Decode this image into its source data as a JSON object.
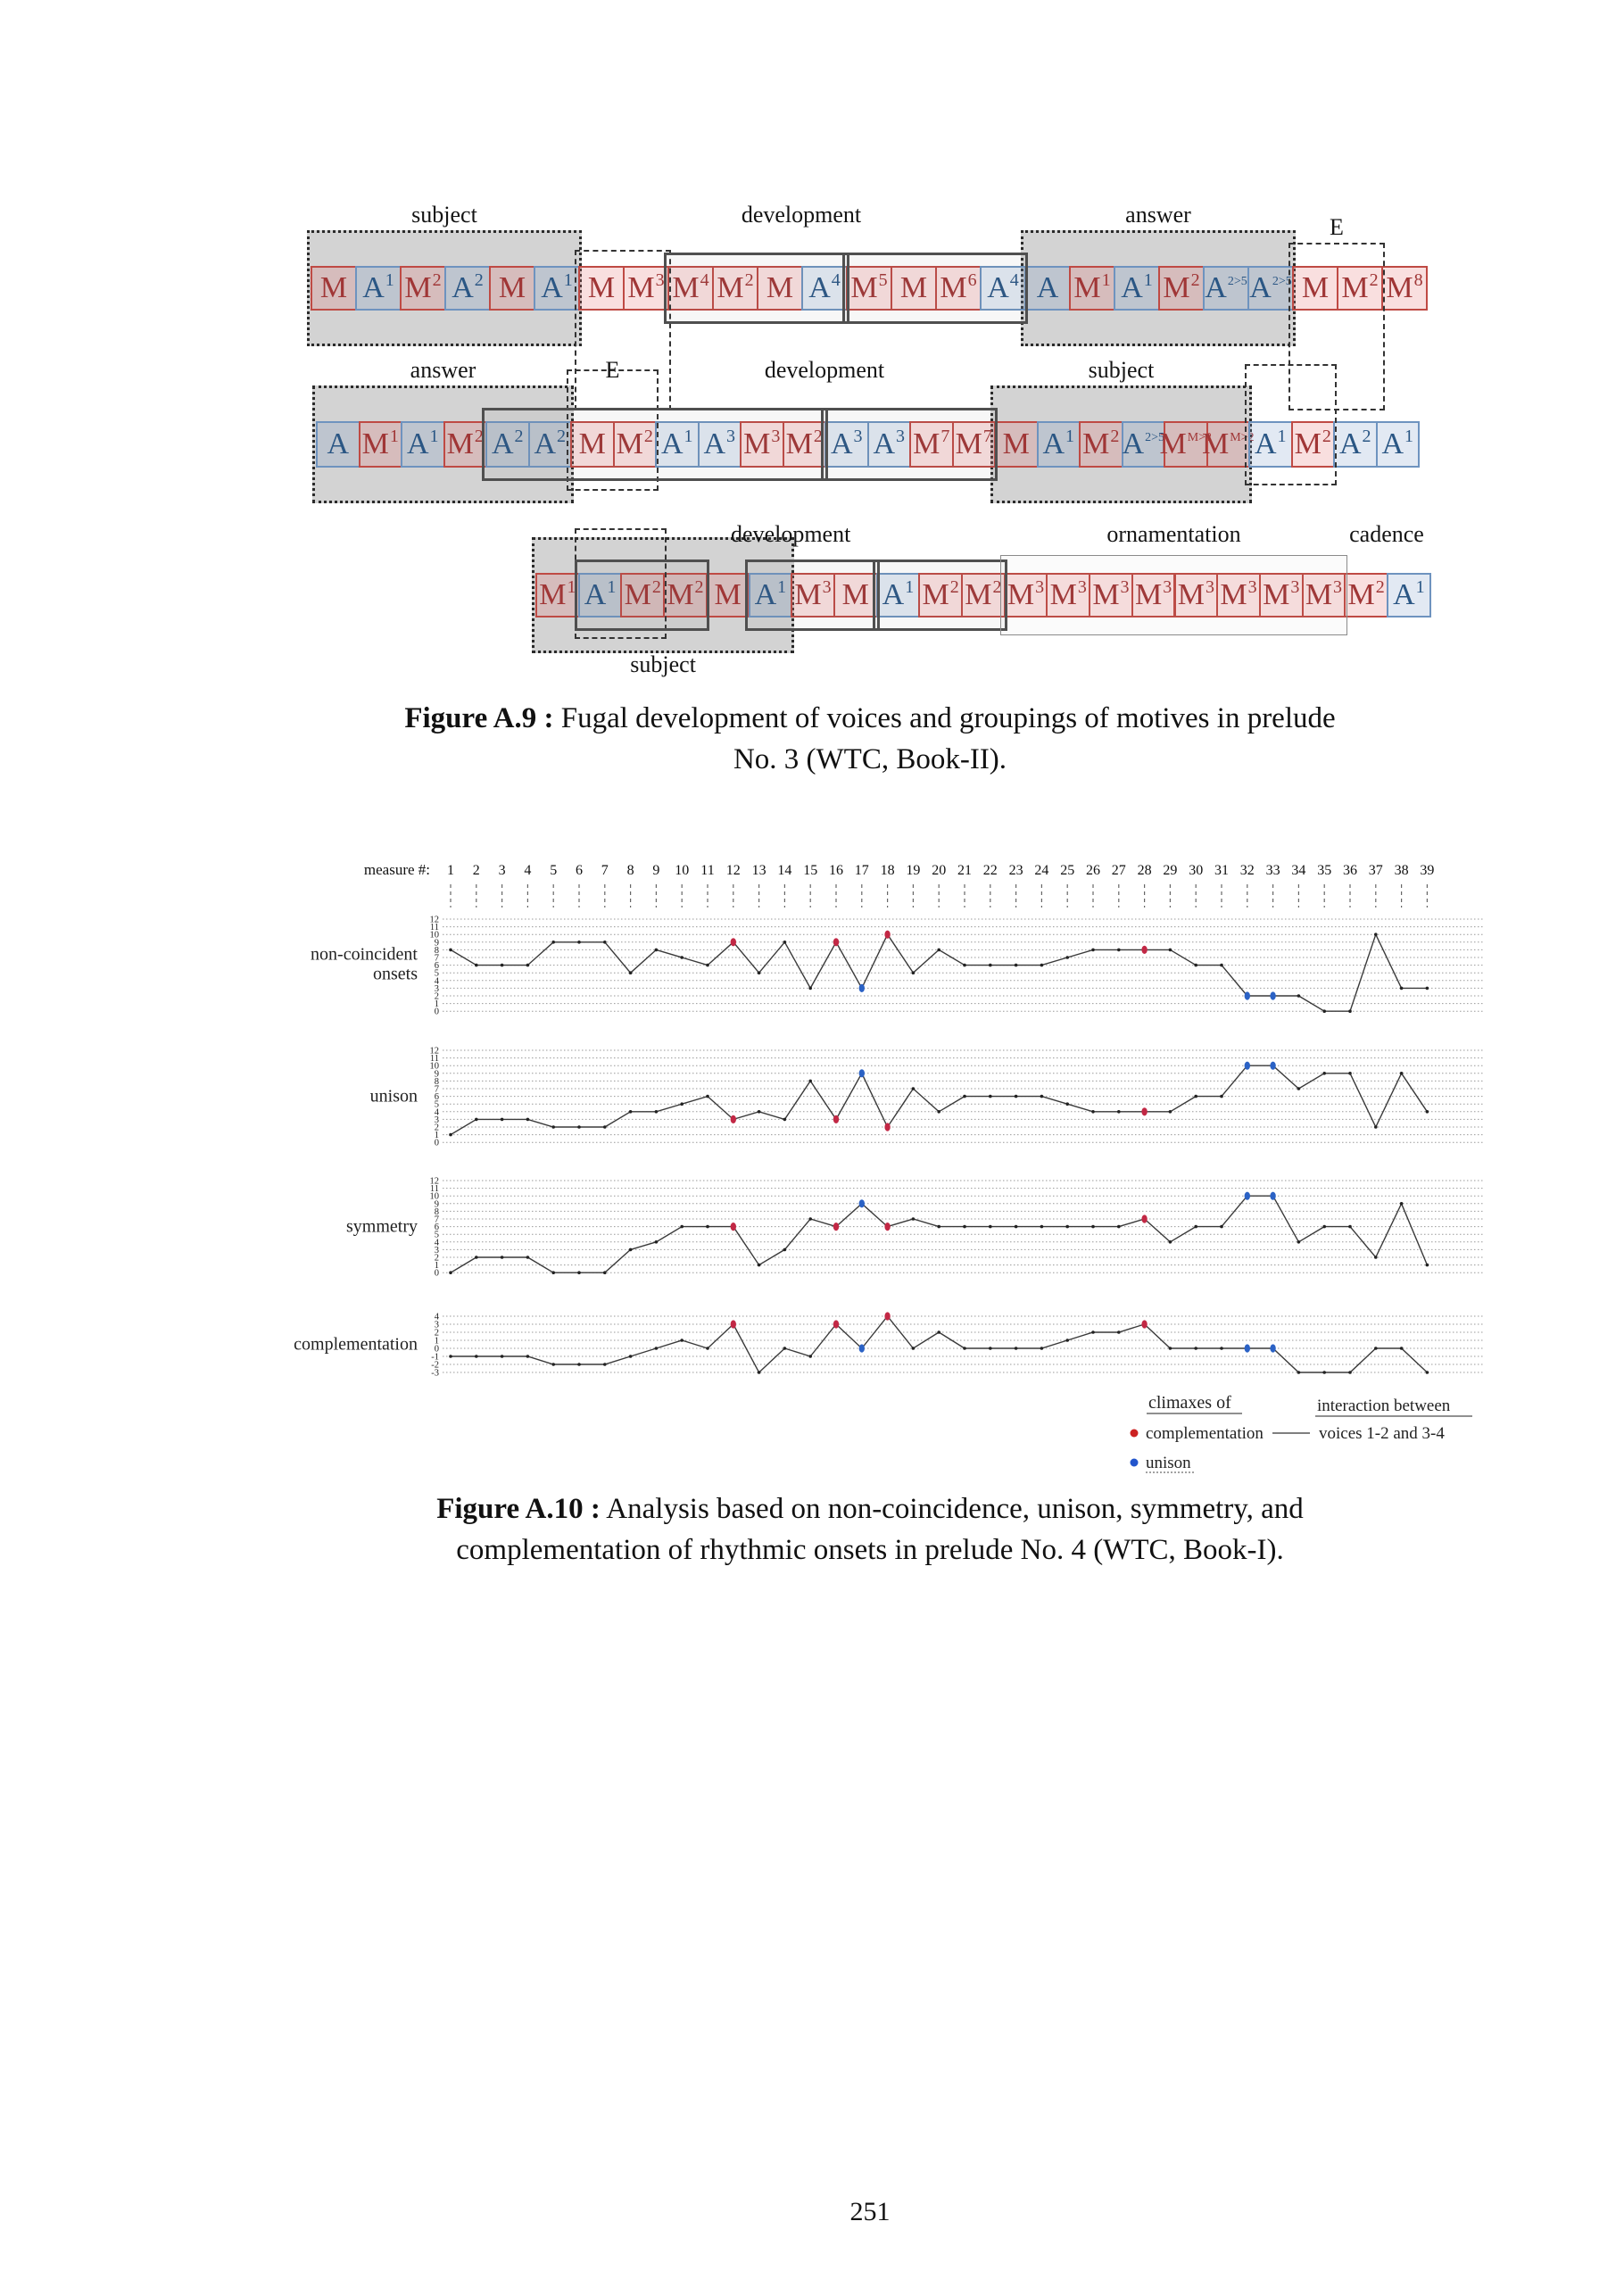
{
  "page": {
    "number": "251"
  },
  "figure_a9": {
    "rows": [
      {
        "cells": [
          "M",
          "A^1",
          "M^2",
          "A^2",
          "M",
          "A^1",
          "M",
          "M^3",
          "M^4",
          "M^2",
          "M",
          "A^4",
          "M^5",
          "M",
          "M^6",
          "A^4",
          "A",
          "M^1",
          "A^1",
          "M^2",
          "A^2>5",
          "A^2>5",
          "M",
          "M^2",
          "M^8"
        ],
        "groups": [
          {
            "style": "dotted",
            "s": 1,
            "e": 6,
            "label": "subject"
          },
          {
            "style": "dashed",
            "s": 7,
            "e": 8,
            "ext": [
              18,
              112
            ]
          },
          {
            "style": "label",
            "s": 7,
            "e": 16,
            "label": "development"
          },
          {
            "style": "solid",
            "s": 9,
            "e": 12
          },
          {
            "style": "solid",
            "s": 13,
            "e": 16
          },
          {
            "style": "dotted",
            "s": 17,
            "e": 22,
            "label": "answer"
          },
          {
            "style": "dashed",
            "s": 23,
            "e": 24,
            "label": "E",
            "ldy": -58,
            "ext": [
              26,
              112
            ]
          }
        ]
      },
      {
        "cells": [
          "A",
          "M^1",
          "A^1",
          "M^2",
          "A^2",
          "A^2",
          "M",
          "M^2",
          "A^1",
          "A^3",
          "M^3",
          "M^2",
          "A^3",
          "A^3",
          "M^7",
          "M^7",
          "M",
          "A^1",
          "M^2",
          "A^2>5",
          "M^M>2",
          "M^M>2",
          "A^1",
          "M^2",
          "A^2",
          "A^1"
        ],
        "groups": [
          {
            "style": "dotted",
            "s": 1,
            "e": 6,
            "label": "answer"
          },
          {
            "style": "dashed",
            "s": 7,
            "e": 8,
            "label": "E",
            "ext": [
              58,
              26
            ]
          },
          {
            "style": "label",
            "s": 9,
            "e": 16,
            "label": "development"
          },
          {
            "style": "solid",
            "s": 5,
            "e": 12
          },
          {
            "style": "solid",
            "s": 13,
            "e": 16
          },
          {
            "style": "dotted",
            "s": 17,
            "e": 22,
            "label": "subject"
          },
          {
            "style": "dashed",
            "s": 23,
            "e": 24,
            "ext": [
              64,
              20
            ]
          }
        ]
      },
      {
        "cells": [
          "M^1",
          "A^1",
          "M^2",
          "M^2",
          "M",
          "A^1",
          "M^3",
          "M",
          "A^1",
          "M^2",
          "M^2",
          "M^3",
          "M^3",
          "M^3",
          "M^3",
          "M^3",
          "M^3",
          "M^3",
          "M^3",
          "M^2",
          "A^1"
        ],
        "groups": [
          {
            "style": "dotted",
            "s": 1,
            "e": 6,
            "label": "subject",
            "lp": "below",
            "ldy": 56
          },
          {
            "style": "dashed",
            "s": 2,
            "e": 3,
            "ext": [
              50,
              24
            ]
          },
          {
            "style": "label",
            "s": 4,
            "e": 9,
            "label": "development",
            "ldy": -58
          },
          {
            "style": "solid",
            "s": 2,
            "e": 4
          },
          {
            "style": "solid",
            "s": 6,
            "e": 8
          },
          {
            "style": "solid",
            "s": 9,
            "e": 11
          },
          {
            "style": "thin",
            "s": 12,
            "e": 19,
            "label": "ornamentation",
            "ldy": -58
          },
          {
            "style": "label",
            "s": 20,
            "e": 21,
            "label": "cadence",
            "ldy": -58
          }
        ]
      }
    ],
    "colors": {
      "motive_red": "#a03636",
      "motive_blue": "#2a5684"
    },
    "caption": {
      "bold": "Figure A.9 :",
      "line1": " Fugal development of voices and groupings of motives in prelude",
      "line2": "No. 3 (WTC, Book-II)."
    }
  },
  "figure_a10": {
    "measure_axis": {
      "label": "measure #:",
      "from": 1,
      "to": 39
    },
    "chart_data": [
      {
        "type": "line",
        "name": "non-coincident onsets",
        "label_lines": [
          "non-coincident",
          "onsets"
        ],
        "ymin": 0,
        "ymax": 12,
        "values": [
          8,
          6,
          6,
          6,
          9,
          9,
          9,
          5,
          8,
          7,
          6,
          9,
          5,
          9,
          3,
          9,
          3,
          10,
          5,
          8,
          6,
          6,
          6,
          6,
          7,
          8,
          8,
          8,
          8,
          6,
          6,
          2,
          2,
          2,
          0,
          0,
          10,
          3,
          3
        ],
        "climax_red": [
          12,
          16,
          18,
          28
        ],
        "climax_blue": [
          17,
          32,
          33
        ]
      },
      {
        "type": "line",
        "name": "unison",
        "label_lines": [
          "unison"
        ],
        "ymin": 0,
        "ymax": 12,
        "values": [
          1,
          3,
          3,
          3,
          2,
          2,
          2,
          4,
          4,
          5,
          6,
          3,
          4,
          3,
          8,
          3,
          9,
          2,
          7,
          4,
          6,
          6,
          6,
          6,
          5,
          4,
          4,
          4,
          4,
          6,
          6,
          10,
          10,
          7,
          9,
          9,
          2,
          9,
          4
        ],
        "climax_red": [
          12,
          16,
          18,
          28
        ],
        "climax_blue": [
          17,
          32,
          33
        ]
      },
      {
        "type": "line",
        "name": "symmetry",
        "label_lines": [
          "symmetry"
        ],
        "ymin": 0,
        "ymax": 12,
        "values": [
          0,
          2,
          2,
          2,
          0,
          0,
          0,
          3,
          4,
          6,
          6,
          6,
          1,
          3,
          7,
          6,
          9,
          6,
          7,
          6,
          6,
          6,
          6,
          6,
          6,
          6,
          6,
          7,
          4,
          6,
          6,
          10,
          10,
          4,
          6,
          6,
          2,
          9,
          1
        ],
        "climax_red": [
          12,
          16,
          18,
          28
        ],
        "climax_blue": [
          17,
          32,
          33
        ]
      },
      {
        "type": "line",
        "name": "complementation",
        "label_lines": [
          "complementation"
        ],
        "ymin": -3,
        "ymax": 4,
        "values": [
          -1,
          -1,
          -1,
          -1,
          -2,
          -2,
          -2,
          -1,
          0,
          1,
          0,
          3,
          -3,
          0,
          -1,
          3,
          0,
          4,
          0,
          2,
          0,
          0,
          0,
          0,
          1,
          2,
          2,
          3,
          0,
          0,
          0,
          0,
          0,
          -3,
          -3,
          -3,
          0,
          0,
          -3
        ],
        "climax_red": [
          12,
          16,
          18,
          28
        ],
        "climax_blue": [
          17,
          32,
          33
        ]
      }
    ],
    "colors": {
      "line": "#3a3a3a",
      "marker": "#222222",
      "climax_red": "#c22845",
      "climax_blue": "#2b62c5",
      "grid": "#9a9a9a"
    },
    "legend": {
      "col1_title": "climaxes of",
      "items": [
        {
          "color": "#cc2222",
          "label": "complementation"
        },
        {
          "color": "#2255cc",
          "label": "unison"
        }
      ],
      "col2_title": "interaction between",
      "line_label": "voices 1-2 and 3-4"
    },
    "caption": {
      "bold": "Figure A.10 :",
      "line1": " Analysis based on non-coincidence, unison, symmetry, and",
      "line2": "complementation of rhythmic onsets in prelude No. 4 (WTC, Book-I)."
    }
  }
}
